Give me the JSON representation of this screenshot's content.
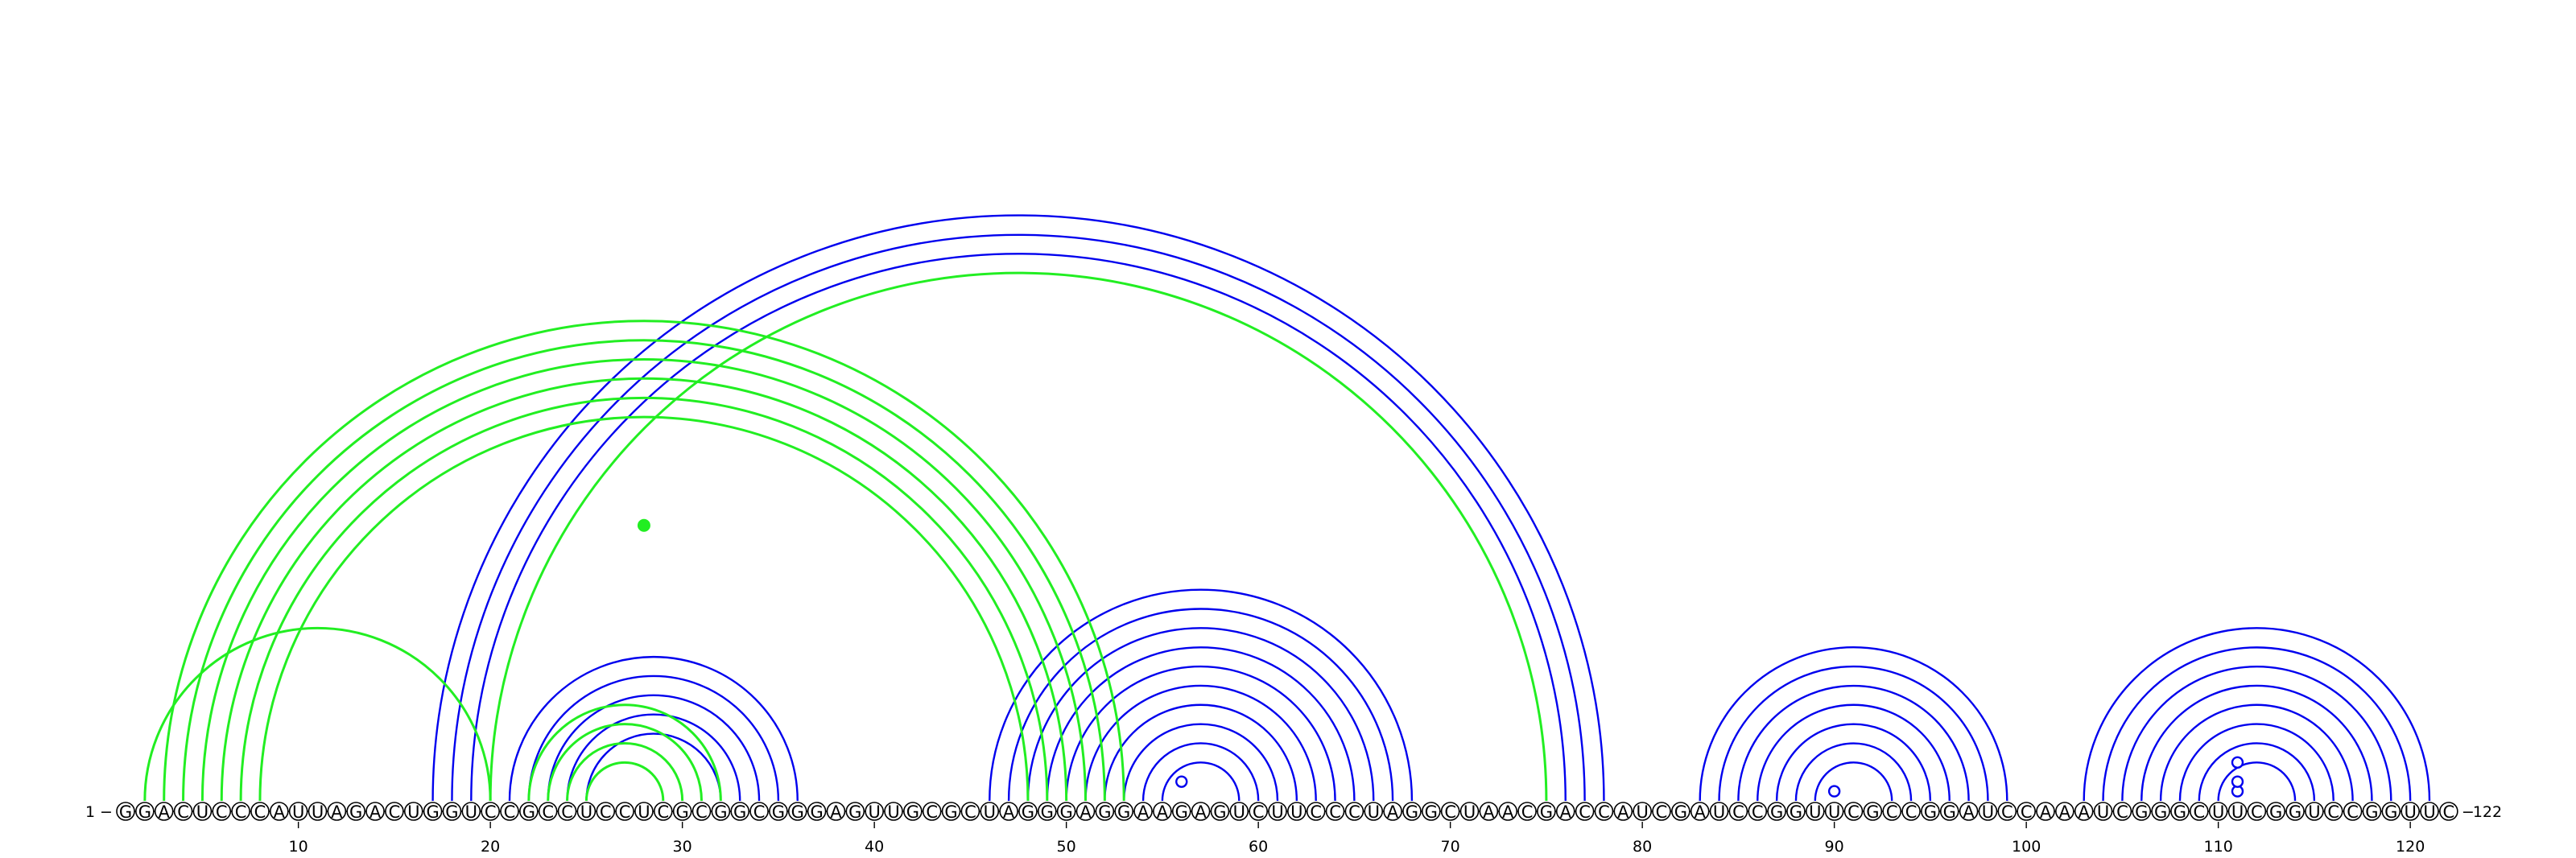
{
  "sequence": "GGACUCCCAUUAGACUGGUCCGCCUCCUCGCGGCGGGAGUUGCGCUAGGGAGGAAGAGUCUUCCCUAGGCUAACGACCAUCGAUCCGGUUCGCCGGAUCCAAAUCGGGCUUCGGUCCGGUUC",
  "start_label": "1",
  "end_label": "122",
  "axis_ticks": [
    "10",
    "20",
    "30",
    "40",
    "50",
    "60",
    "70",
    "80",
    "90",
    "100",
    "110",
    "120"
  ],
  "colors": {
    "blue": "#0000ee",
    "green": "#22ee22",
    "backbone": "#000000"
  },
  "chart_data": {
    "type": "arc-diagram",
    "length": 122,
    "tick_positions": [
      10,
      20,
      30,
      40,
      50,
      60,
      70,
      80,
      90,
      100,
      110,
      120
    ],
    "blue_pairs": [
      [
        17,
        78
      ],
      [
        18,
        77
      ],
      [
        19,
        76
      ],
      [
        21,
        36
      ],
      [
        22,
        35
      ],
      [
        23,
        34
      ],
      [
        24,
        33
      ],
      [
        25,
        32
      ],
      [
        46,
        68
      ],
      [
        47,
        67
      ],
      [
        48,
        66
      ],
      [
        49,
        65
      ],
      [
        50,
        64
      ],
      [
        51,
        63
      ],
      [
        52,
        62
      ],
      [
        53,
        61
      ],
      [
        54,
        60
      ],
      [
        55,
        59
      ],
      [
        83,
        99
      ],
      [
        84,
        98
      ],
      [
        85,
        97
      ],
      [
        86,
        96
      ],
      [
        87,
        95
      ],
      [
        88,
        94
      ],
      [
        89,
        93
      ],
      [
        103,
        121
      ],
      [
        104,
        120
      ],
      [
        105,
        119
      ],
      [
        106,
        118
      ],
      [
        107,
        117
      ],
      [
        108,
        116
      ],
      [
        109,
        115
      ],
      [
        110,
        114
      ]
    ],
    "green_pairs": [
      [
        2,
        20
      ],
      [
        20,
        75
      ],
      [
        3,
        53
      ],
      [
        4,
        52
      ],
      [
        5,
        51
      ],
      [
        6,
        50
      ],
      [
        7,
        49
      ],
      [
        8,
        48
      ],
      [
        22,
        32
      ],
      [
        23,
        31
      ],
      [
        24,
        30
      ],
      [
        25,
        29
      ]
    ],
    "blue_bulges": [
      [
        56,
        2
      ],
      [
        90,
        1
      ],
      [
        111,
        1
      ],
      [
        111,
        2
      ],
      [
        111,
        4
      ]
    ],
    "green_point": [
      28,
      7
    ]
  }
}
